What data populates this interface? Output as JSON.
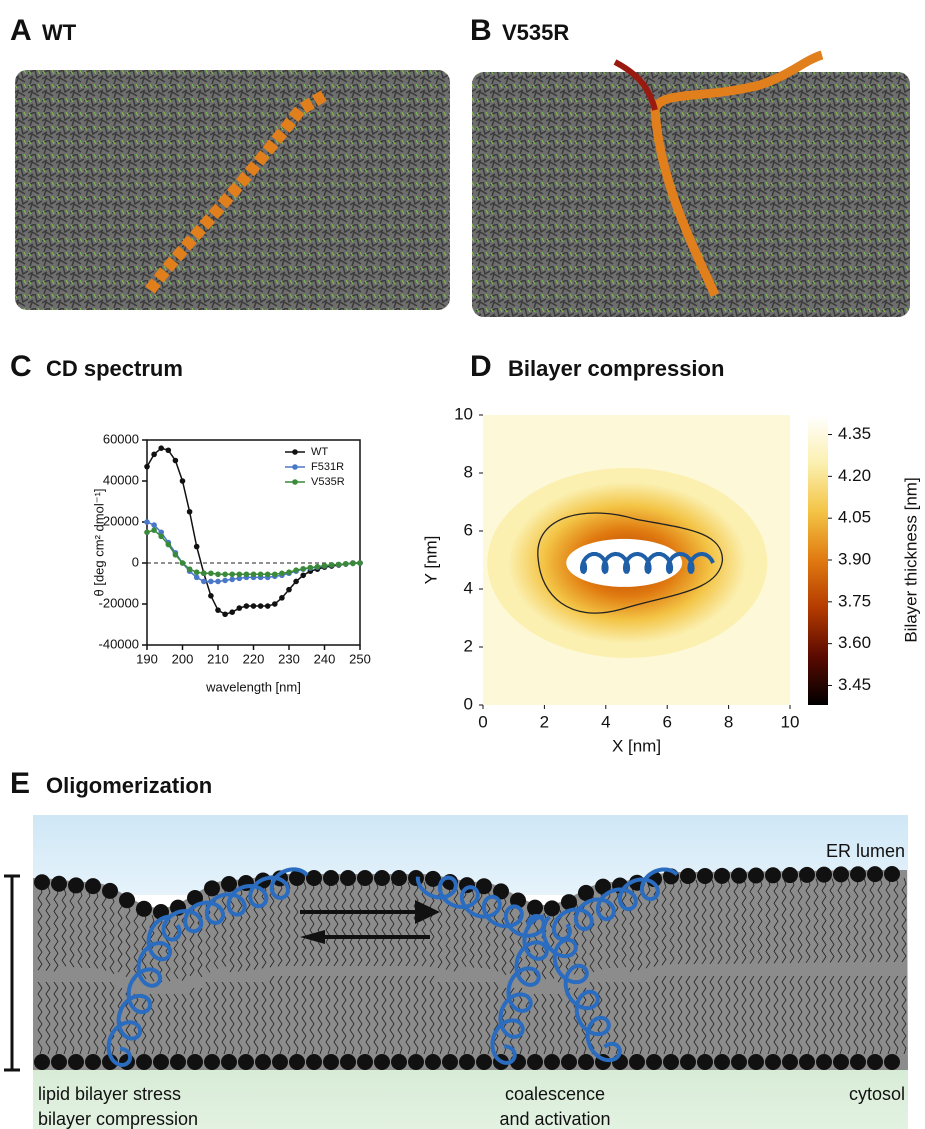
{
  "panels": {
    "A": {
      "label": "A",
      "title": "WT"
    },
    "B": {
      "label": "B",
      "title": "V535R"
    },
    "C": {
      "label": "C",
      "title": "CD spectrum"
    },
    "D": {
      "label": "D",
      "title": "Bilayer compression"
    },
    "E": {
      "label": "E",
      "title": "Oligomerization",
      "lumen": "ER lumen",
      "left_1": "lipid bilayer stress",
      "left_2": "bilayer compression",
      "mid_1": "coalescence",
      "mid_2": "and activation",
      "cytosol": "cytosol"
    }
  },
  "chart_data": [
    {
      "type": "line",
      "xlabel": "wavelength [nm]",
      "ylabel": "θ [deg cm² dmol⁻¹]",
      "x": [
        190,
        192,
        194,
        196,
        198,
        200,
        202,
        204,
        206,
        208,
        210,
        212,
        214,
        216,
        218,
        220,
        222,
        224,
        226,
        228,
        230,
        232,
        234,
        236,
        238,
        240,
        242,
        244,
        246,
        248,
        250
      ],
      "series": [
        {
          "name": "WT",
          "color": "#111111",
          "values": [
            47000,
            53000,
            56000,
            55000,
            50000,
            40000,
            25000,
            8000,
            -5000,
            -16000,
            -23000,
            -25000,
            -24000,
            -22000,
            -21000,
            -21000,
            -21000,
            -21000,
            -20000,
            -17000,
            -13000,
            -9000,
            -6000,
            -4000,
            -3000,
            -2000,
            -1500,
            -1000,
            -500,
            0,
            0
          ]
        },
        {
          "name": "F531R",
          "color": "#4a78c8",
          "values": [
            20000,
            18500,
            15000,
            10000,
            5000,
            0,
            -4000,
            -7000,
            -9000,
            -9000,
            -9000,
            -8500,
            -8000,
            -7500,
            -7000,
            -7000,
            -7000,
            -7000,
            -6500,
            -6000,
            -5000,
            -4000,
            -3000,
            -2500,
            -2000,
            -1500,
            -1000,
            -800,
            -500,
            -200,
            0
          ]
        },
        {
          "name": "V535R",
          "color": "#3a8a3a",
          "values": [
            15000,
            16000,
            13000,
            9000,
            4000,
            0,
            -3000,
            -4500,
            -5000,
            -5000,
            -5500,
            -5500,
            -5500,
            -5500,
            -5500,
            -5500,
            -5500,
            -5500,
            -5500,
            -5000,
            -4500,
            -3500,
            -2800,
            -2200,
            -1800,
            -1300,
            -900,
            -700,
            -400,
            -200,
            0
          ]
        }
      ],
      "xlim": [
        190,
        250
      ],
      "xticks": [
        190,
        200,
        210,
        220,
        230,
        240,
        250
      ],
      "ylim": [
        -40000,
        60000
      ],
      "yticks": [
        -40000,
        -20000,
        0,
        20000,
        40000,
        60000
      ],
      "legend": "upper right"
    },
    {
      "type": "heatmap",
      "xlabel": "X [nm]",
      "ylabel": "Y [nm]",
      "colorbar_label": "Bilayer thickness [nm]",
      "xlim": [
        0,
        10
      ],
      "xticks": [
        0,
        2,
        4,
        6,
        8,
        10
      ],
      "ylim": [
        0,
        10
      ],
      "yticks": [
        0,
        2,
        4,
        6,
        8,
        10
      ],
      "clim": [
        3.38,
        4.42
      ],
      "cticks": [
        3.45,
        {
          "value": 3.6,
          "label": "3.60"
        },
        3.75,
        {
          "value": 3.9,
          "label": "3.90"
        },
        4.05,
        {
          "value": 4.2,
          "label": "4.20"
        },
        4.35
      ],
      "colormap": [
        "#000000",
        "#5a0a00",
        "#b33a00",
        "#e07a10",
        "#f3c445",
        "#fbf0b0",
        "#ffffff"
      ]
    }
  ]
}
